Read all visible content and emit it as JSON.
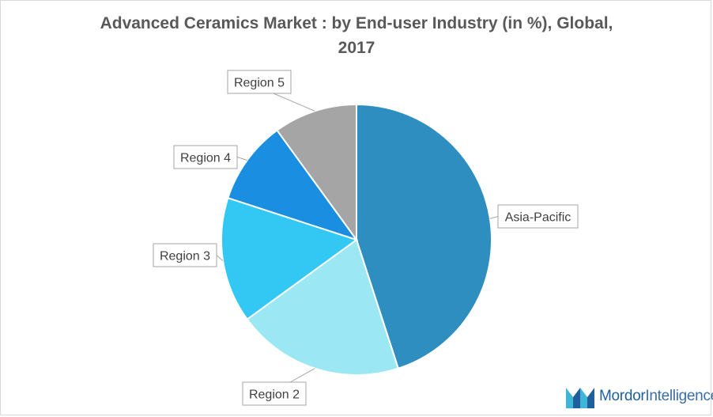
{
  "chart_data": {
    "type": "pie",
    "title_line1": "Advanced Ceramics Market : by End-user Industry (in %), Global,",
    "title_line2": "2017",
    "slices": [
      {
        "label": "Asia-Pacific",
        "value": 45,
        "color": "#2e8ec0"
      },
      {
        "label": "Region 2",
        "value": 20,
        "color": "#9be8f4"
      },
      {
        "label": "Region 3",
        "value": 15,
        "color": "#33c8f3"
      },
      {
        "label": "Region 4",
        "value": 10,
        "color": "#1a8ee0"
      },
      {
        "label": "Region 5",
        "value": 10,
        "color": "#a5a5a5"
      }
    ]
  },
  "logo": {
    "word1": "Mordor",
    "word2": "Intelligence"
  }
}
